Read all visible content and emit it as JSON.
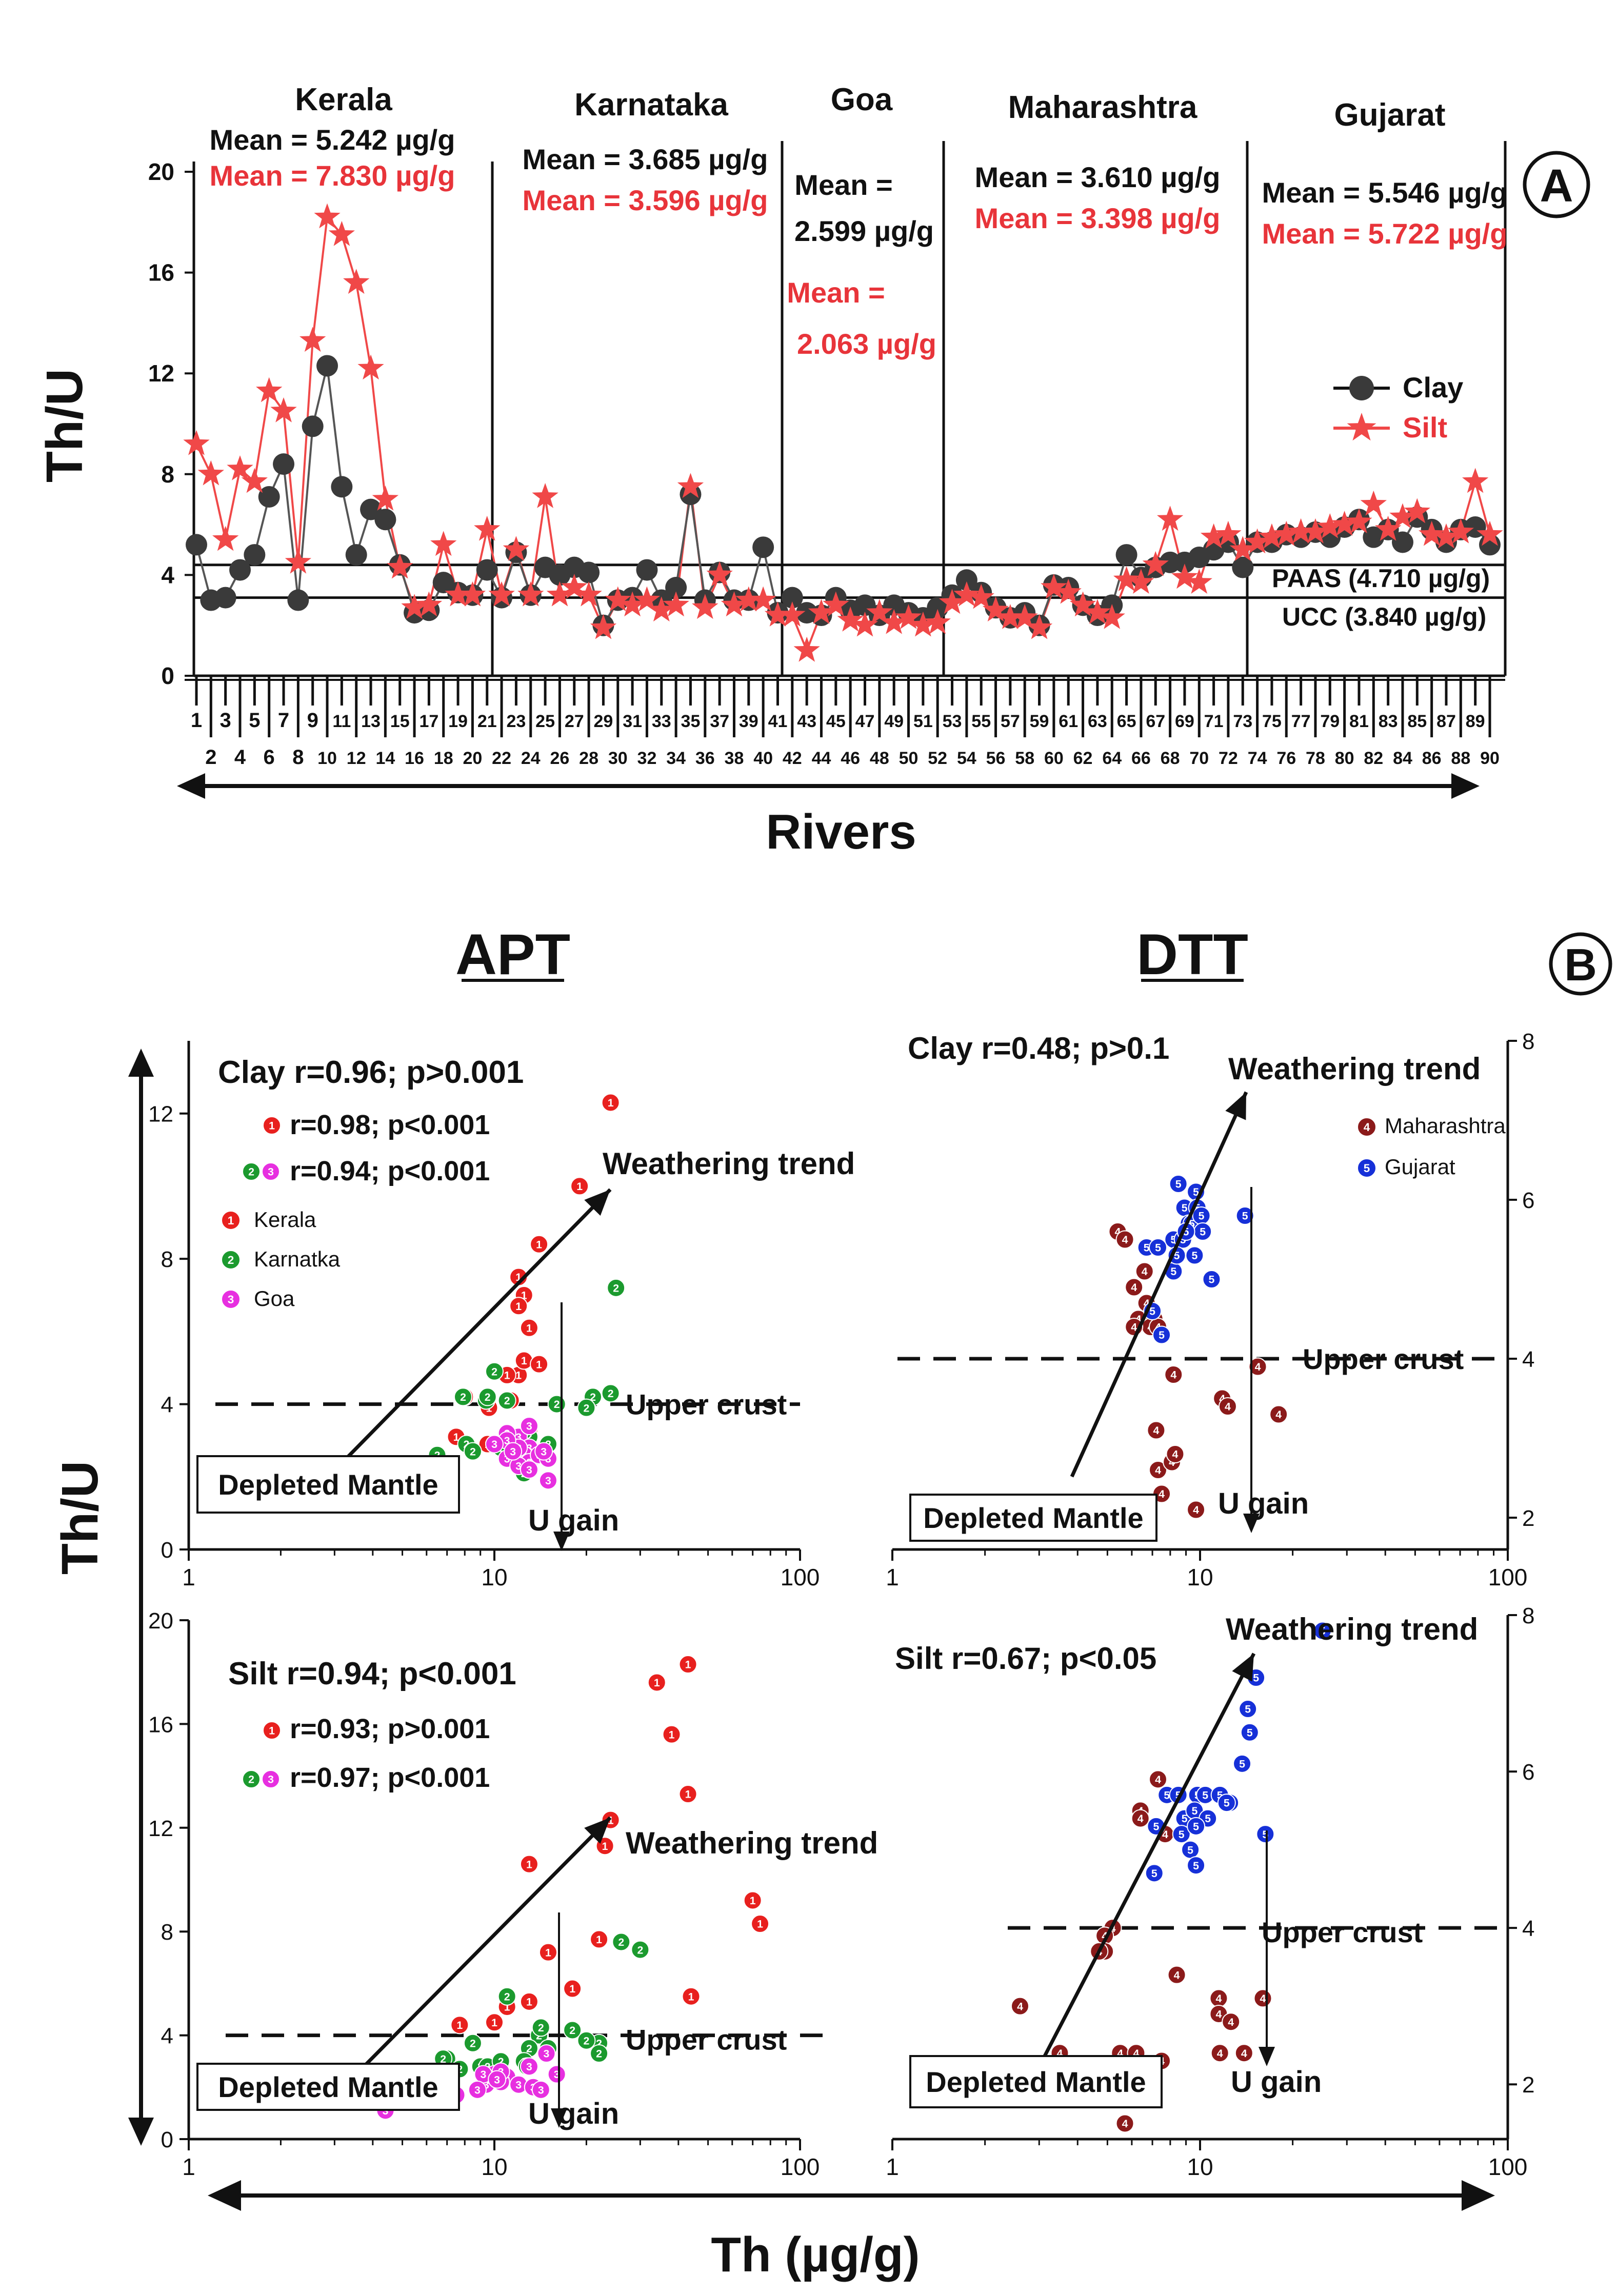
{
  "panel_a": {
    "label": "A",
    "ylabel": "Th/U",
    "xlabel": "Rivers",
    "ylim": [
      0,
      20
    ],
    "yticks": [
      "0",
      "4",
      "8",
      "12",
      "16",
      "20"
    ],
    "regions": [
      {
        "name": "Kerala",
        "mean_clay": "Mean = 5.242 µg/g",
        "mean_silt": "Mean = 7.830 µg/g"
      },
      {
        "name": "Karnataka",
        "mean_clay": "Mean = 3.685 µg/g",
        "mean_silt": "Mean = 3.596 µg/g"
      },
      {
        "name": "Goa",
        "mean_clay_1": "Mean =",
        "mean_clay_2": "2.599 µg/g",
        "mean_silt_1": "Mean =",
        "mean_silt_2": "2.063 µg/g"
      },
      {
        "name": "Maharashtra",
        "mean_clay": "Mean = 3.610 µg/g",
        "mean_silt": "Mean = 3.398 µg/g"
      },
      {
        "name": "Gujarat",
        "mean_clay": "Mean = 5.546 µg/g",
        "mean_silt": "Mean = 5.722 µg/g"
      }
    ],
    "paas_label": "PAAS (4.710 µg/g)",
    "ucc_label": "UCC (3.840 µg/g)",
    "legend": {
      "clay": "Clay",
      "silt": "Silt"
    }
  },
  "panel_b": {
    "label": "B",
    "ylabel": "Th/U",
    "xlabel": "Th (µg/g)",
    "apt_title": "APT",
    "dtt_title": "DTT",
    "weathering_label": "Weathering trend",
    "upper_crust_label": "Upper crust",
    "depleted_label": "Depleted Mantle",
    "ugain_label": "U gain",
    "xticks": [
      "1",
      "10",
      "100"
    ],
    "apt_clay": {
      "stat": "Clay r=0.96; p>0.001",
      "sub1": "r=0.98; p<0.001",
      "sub2": "r=0.94; p<0.001",
      "yticks": [
        "0",
        "4",
        "8",
        "12"
      ],
      "legend": [
        "Kerala",
        "Karnatka",
        "Goa"
      ]
    },
    "dtt_clay": {
      "stat": "Clay r=0.48; p>0.1",
      "yticks": [
        "2",
        "4",
        "6",
        "8"
      ],
      "legend": [
        "Maharashtra",
        "Gujarat"
      ]
    },
    "apt_silt": {
      "stat": "Silt  r=0.94; p<0.001",
      "sub1": "r=0.93; p>0.001",
      "sub2": "r=0.97; p<0.001",
      "yticks": [
        "0",
        "4",
        "8",
        "12",
        "16",
        "20"
      ]
    },
    "dtt_silt": {
      "stat": "Silt  r=0.67; p<0.05",
      "yticks": [
        "2",
        "4",
        "6",
        "8"
      ]
    }
  },
  "colors": {
    "clay": "#3a3a3a",
    "silt": "#f04848",
    "kerala": "#e8201e",
    "karnataka": "#1b9a2e",
    "goa": "#e72fe0",
    "maharashtra": "#8b1a1a",
    "gujarat": "#1630d8"
  },
  "chart_data": [
    {
      "type": "line",
      "xlabel": "Rivers",
      "ylabel": "Th/U",
      "ylim": [
        0,
        20
      ],
      "x": [
        1,
        2,
        3,
        4,
        5,
        6,
        7,
        8,
        9,
        10,
        11,
        12,
        13,
        14,
        15,
        16,
        17,
        18,
        19,
        20,
        21,
        22,
        23,
        24,
        25,
        26,
        27,
        28,
        29,
        30,
        31,
        32,
        33,
        34,
        35,
        36,
        37,
        38,
        39,
        40,
        41,
        42,
        43,
        44,
        45,
        46,
        47,
        48,
        49,
        50,
        51,
        52,
        53,
        54,
        55,
        56,
        57,
        58,
        59,
        60,
        61,
        62,
        63,
        64,
        65,
        66,
        67,
        68,
        69,
        70,
        71,
        72,
        73,
        74,
        75,
        76,
        77,
        78,
        79,
        80,
        81,
        82,
        83,
        84,
        85,
        86,
        87,
        88,
        89,
        90
      ],
      "series": [
        {
          "name": "Clay",
          "values": [
            5.2,
            3.0,
            3.1,
            4.2,
            4.8,
            7.1,
            8.4,
            3.0,
            9.9,
            12.3,
            7.5,
            4.8,
            6.6,
            6.2,
            4.4,
            2.5,
            2.6,
            3.7,
            3.3,
            3.2,
            4.2,
            3.1,
            4.9,
            3.2,
            4.3,
            4.0,
            4.3,
            4.1,
            2.0,
            3.0,
            3.1,
            4.2,
            3.0,
            3.5,
            7.2,
            3.0,
            4.1,
            3.0,
            3.0,
            5.1,
            2.5,
            3.1,
            2.5,
            2.4,
            3.1,
            2.6,
            2.8,
            2.4,
            2.8,
            2.5,
            2.3,
            2.7,
            3.2,
            3.8,
            3.3,
            2.7,
            2.3,
            2.5,
            2.0,
            3.6,
            3.5,
            2.8,
            2.4,
            2.8,
            4.8,
            3.9,
            4.3,
            4.5,
            4.5,
            4.7,
            5.0,
            5.3,
            4.3,
            5.3,
            5.3,
            5.6,
            5.5,
            5.7,
            5.5,
            5.9,
            6.2,
            5.5,
            5.8,
            5.3,
            6.3,
            5.8,
            5.3,
            5.8,
            5.9,
            5.2
          ]
        },
        {
          "name": "Silt",
          "values": [
            9.2,
            8.0,
            5.4,
            8.2,
            7.7,
            11.3,
            10.5,
            4.5,
            13.3,
            18.2,
            17.5,
            15.6,
            12.2,
            7.0,
            4.3,
            2.7,
            2.8,
            5.2,
            3.2,
            3.2,
            5.8,
            3.2,
            5.0,
            3.2,
            7.1,
            3.2,
            3.5,
            3.2,
            1.9,
            3.0,
            2.8,
            3.0,
            2.6,
            2.8,
            7.5,
            2.7,
            4.0,
            2.8,
            3.0,
            3.0,
            2.4,
            2.4,
            1.0,
            2.5,
            2.8,
            2.2,
            2.0,
            2.5,
            2.1,
            2.3,
            2.0,
            2.1,
            2.9,
            3.2,
            3.1,
            2.6,
            2.3,
            2.3,
            1.9,
            3.5,
            3.3,
            2.8,
            2.5,
            2.3,
            3.8,
            3.7,
            4.4,
            6.2,
            3.9,
            3.7,
            5.5,
            5.6,
            5.0,
            5.3,
            5.5,
            5.6,
            5.7,
            5.7,
            5.9,
            6.0,
            6.1,
            6.8,
            5.8,
            6.3,
            6.5,
            5.6,
            5.5,
            5.7,
            7.7,
            5.6
          ]
        }
      ]
    },
    {
      "type": "scatter",
      "title": "APT",
      "xlabel": "Th (µg/g)",
      "ylabel": "Th/U",
      "xscale": "log",
      "xlim": [
        1,
        100
      ],
      "ylim": [
        0,
        14
      ],
      "series": [
        {
          "name": "Kerala",
          "x": [
            24,
            19,
            14,
            12,
            12.5,
            12,
            13,
            12,
            11,
            9.6,
            11.3,
            8,
            12.5,
            14,
            7.5,
            11,
            9.5,
            13
          ],
          "y": [
            12.3,
            10,
            8.4,
            7.5,
            7.0,
            6.7,
            6.1,
            4.8,
            4.8,
            3.9,
            4.1,
            4.2,
            5.2,
            5.1,
            3.1,
            2.8,
            2.9,
            3.3
          ]
        },
        {
          "name": "Karnatka",
          "x": [
            25,
            10,
            7.9,
            9.4,
            16,
            21,
            20,
            24,
            11,
            9.5,
            15,
            12.5,
            8.1,
            13,
            12,
            10.5,
            6.5,
            8.5,
            13,
            12
          ],
          "y": [
            7.2,
            4.9,
            4.2,
            4.1,
            4.0,
            4.2,
            3.9,
            4.3,
            4.1,
            4.2,
            2.9,
            2.1,
            2.9,
            2.3,
            2.8,
            2.8,
            2.6,
            2.7,
            3.1,
            2.4
          ]
        },
        {
          "name": "Goa",
          "x": [
            12,
            11,
            13,
            12.5,
            11,
            13,
            14,
            15,
            12,
            11,
            10,
            12,
            13,
            11.5,
            13,
            14.5,
            15
          ],
          "y": [
            3.1,
            3.2,
            2.8,
            2.6,
            2.5,
            2.4,
            2.6,
            2.5,
            2.8,
            3.0,
            2.9,
            2.3,
            2.2,
            2.7,
            3.4,
            2.7,
            1.9
          ]
        }
      ]
    },
    {
      "type": "scatter",
      "title": "DTT",
      "xlabel": "Th (µg/g)",
      "ylabel": "Th/U",
      "xscale": "log",
      "xlim": [
        1,
        100
      ],
      "ylim": [
        1.6,
        8
      ],
      "series": [
        {
          "name": "Maharashtra",
          "x": [
            5.4,
            5.7,
            6.1,
            6.6,
            6.3,
            6.7,
            7.1,
            6.9,
            6.1,
            7.3,
            8.2,
            11.8,
            12.3,
            15.4,
            18,
            7.2,
            7.3,
            8.1,
            8.3,
            7.5,
            9.7
          ],
          "y": [
            5.6,
            5.5,
            4.9,
            5.1,
            4.5,
            4.7,
            4.5,
            4.4,
            4.4,
            4.4,
            3.8,
            3.5,
            3.4,
            3.9,
            3.3,
            3.1,
            2.6,
            2.7,
            2.8,
            2.3,
            2.1
          ]
        },
        {
          "name": "Gujarat",
          "x": [
            8.5,
            9.7,
            8.9,
            9.8,
            9.2,
            9.4,
            10.1,
            10.2,
            8.2,
            8.8,
            9,
            14,
            6.7,
            7.3,
            8.2,
            9.6,
            7,
            8.4,
            7.5,
            10.9
          ],
          "y": [
            6.2,
            6.1,
            5.9,
            5.9,
            5.7,
            5.7,
            5.8,
            5.6,
            5.5,
            5.5,
            5.6,
            5.8,
            5.4,
            5.4,
            5.1,
            5.3,
            4.6,
            5.3,
            4.3,
            5.0
          ]
        }
      ]
    },
    {
      "type": "scatter",
      "title": "APT",
      "xlabel": "Th (µg/g)",
      "ylabel": "Th/U",
      "xscale": "log",
      "xlim": [
        1,
        100
      ],
      "ylim": [
        0,
        20
      ],
      "series": [
        {
          "name": "Kerala",
          "x": [
            43,
            34,
            38,
            43,
            24,
            23,
            13,
            70,
            74,
            22,
            15,
            18,
            13,
            11,
            10,
            7.7,
            44
          ],
          "y": [
            18.3,
            17.6,
            15.6,
            13.3,
            12.3,
            11.3,
            10.6,
            9.2,
            8.3,
            7.7,
            7.2,
            5.8,
            5.3,
            5.1,
            4.5,
            4.4,
            5.5
          ]
        },
        {
          "name": "Karnatka",
          "x": [
            26,
            30,
            22,
            18,
            11,
            8.5,
            14,
            13,
            12.5,
            7,
            7.7,
            9,
            10.5,
            12.8,
            14.2,
            20,
            22,
            6.8,
            15,
            9.5,
            10.5
          ],
          "y": [
            7.6,
            7.3,
            3.7,
            4.2,
            5.5,
            3.7,
            4.0,
            3.5,
            3.0,
            3.1,
            2.7,
            2.8,
            3.0,
            2.8,
            4.3,
            3.8,
            3.3,
            3.1,
            3.5,
            2.8,
            3.0
          ]
        },
        {
          "name": "Goa",
          "x": [
            13,
            16,
            14.8,
            11,
            10,
            10.5,
            12,
            9.4,
            9.2,
            10.5,
            10.2,
            13.4,
            14.2,
            8.8,
            7.5,
            4.4
          ],
          "y": [
            2.8,
            2.5,
            3.3,
            2.4,
            2.5,
            2.2,
            2.1,
            2.1,
            2.5,
            2.6,
            2.3,
            2.0,
            1.9,
            1.9,
            1.7,
            1.1
          ]
        }
      ]
    },
    {
      "type": "scatter",
      "title": "DTT",
      "xlabel": "Th (µg/g)",
      "ylabel": "Th/U",
      "xscale": "log",
      "xlim": [
        1,
        100
      ],
      "ylim": [
        1.3,
        8
      ],
      "series": [
        {
          "name": "Maharashtra",
          "x": [
            7.3,
            6.4,
            6.4,
            7.7,
            5.2,
            4.9,
            4.9,
            4.7,
            2.6,
            8.4,
            11.5,
            11.6,
            16,
            11.5,
            12.6,
            3.5,
            3.2,
            5.5,
            6.2,
            7.5,
            13.9,
            5.7
          ],
          "y": [
            5.9,
            5.5,
            5.4,
            5.2,
            4.0,
            3.9,
            3.7,
            3.7,
            3.0,
            3.4,
            3.1,
            2.4,
            3.1,
            2.9,
            2.8,
            2.4,
            2.0,
            2.4,
            2.4,
            2.3,
            2.4,
            1.5
          ]
        },
        {
          "name": "Gujarat",
          "x": [
            25,
            15.2,
            14.3,
            14.5,
            13.7,
            7.8,
            8.5,
            9.8,
            10.4,
            11.6,
            12.5,
            7.2,
            8.9,
            9.6,
            10.6,
            12.2,
            8.7,
            9.7,
            9.3,
            7.1,
            16.3,
            9.7
          ],
          "y": [
            7.8,
            7.2,
            6.8,
            6.5,
            6.1,
            5.7,
            5.7,
            5.7,
            5.7,
            5.7,
            5.6,
            5.3,
            5.4,
            5.5,
            5.4,
            5.6,
            5.2,
            5.3,
            5.0,
            4.7,
            5.2,
            4.8
          ]
        }
      ]
    }
  ]
}
